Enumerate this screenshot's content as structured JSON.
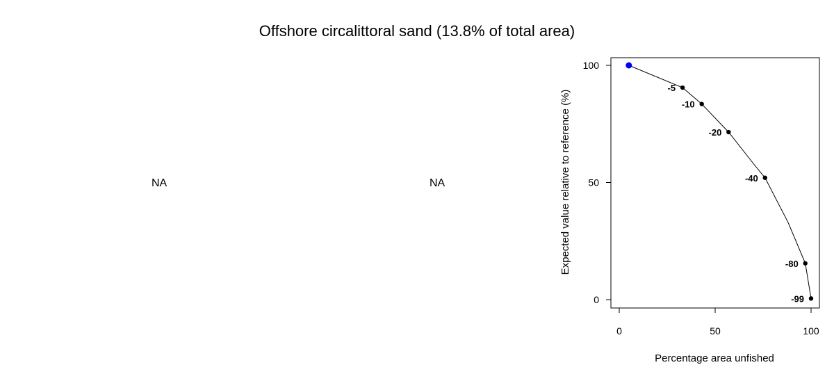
{
  "title": "Offshore circalittoral sand (13.8% of total area)",
  "na_panels": [
    "NA",
    "NA"
  ],
  "chart_data": {
    "type": "line",
    "xlabel": "Percentage area unfished",
    "ylabel": "Expected value relative to reference (%)",
    "xlim": [
      0,
      100
    ],
    "ylim": [
      0,
      100
    ],
    "xticks": [
      0,
      50,
      100
    ],
    "yticks": [
      0,
      50,
      100
    ],
    "grid": false,
    "curve": {
      "x": [
        5,
        33,
        43,
        57,
        70,
        76,
        88,
        97,
        100
      ],
      "y": [
        100,
        90.5,
        83.5,
        71.5,
        58,
        52,
        33,
        15.5,
        0.5
      ]
    },
    "reference_point": {
      "x": 5,
      "y": 100,
      "color": "#0000ff"
    },
    "points": [
      {
        "x": 33,
        "y": 90.5,
        "label": "-5"
      },
      {
        "x": 43,
        "y": 83.5,
        "label": "-10"
      },
      {
        "x": 57,
        "y": 71.5,
        "label": "-20"
      },
      {
        "x": 76,
        "y": 52,
        "label": "-40"
      },
      {
        "x": 97,
        "y": 15.5,
        "label": "-80"
      },
      {
        "x": 100,
        "y": 0.5,
        "label": "-99"
      }
    ]
  }
}
